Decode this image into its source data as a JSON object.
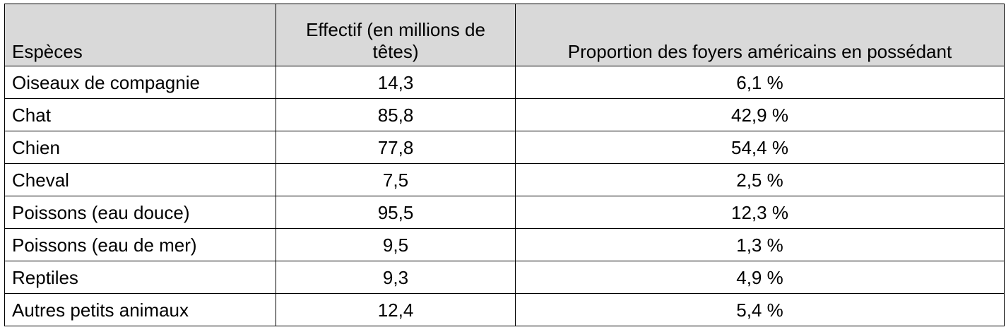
{
  "table": {
    "headers": {
      "species": "Espèces",
      "count": "Effectif (en millions de têtes)",
      "share": "Proportion des foyers américains en possédant"
    },
    "rows": [
      {
        "species": "Oiseaux de compagnie",
        "count": "14,3",
        "share": "6,1 %"
      },
      {
        "species": "Chat",
        "count": "85,8",
        "share": "42,9 %"
      },
      {
        "species": "Chien",
        "count": "77,8",
        "share": "54,4 %"
      },
      {
        "species": "Cheval",
        "count": "7,5",
        "share": "2,5 %"
      },
      {
        "species": "Poissons (eau douce)",
        "count": "95,5",
        "share": "12,3 %"
      },
      {
        "species": "Poissons (eau de mer)",
        "count": "9,5",
        "share": "1,3 %"
      },
      {
        "species": "Reptiles",
        "count": "9,3",
        "share": "4,9 %"
      },
      {
        "species": "Autres petits animaux",
        "count": "12,4",
        "share": "5,4 %"
      }
    ],
    "header_fill": "#d9d9d9"
  }
}
